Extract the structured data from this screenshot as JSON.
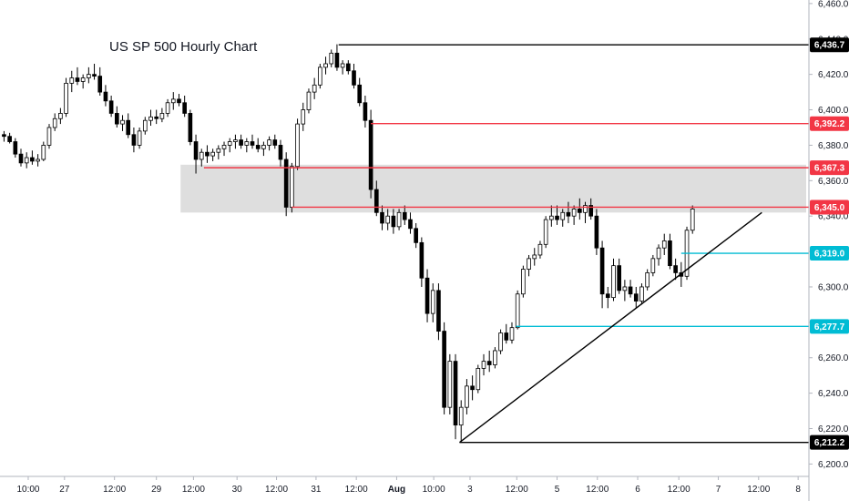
{
  "chart_data": {
    "type": "candlestick",
    "title": "US SP 500 Hourly Chart",
    "y_range": [
      6193,
      6462
    ],
    "y_ticks": [
      6200,
      6220,
      6240,
      6260,
      6280,
      6300,
      6320,
      6340,
      6360,
      6380,
      6400,
      6420,
      6440,
      6460
    ],
    "y_tick_labels": [
      "6,200.0",
      "6,220.0",
      "6,240.0",
      "6,260.0",
      "6,280.0",
      "6,300.0",
      "6,320.0",
      "6,340.0",
      "6,360.0",
      "6,380.0",
      "6,400.0",
      "6,420.0",
      "6,440.0",
      "6,460.0"
    ],
    "x_range": [
      0,
      100
    ],
    "x_ticks": [
      {
        "x": 3.5,
        "label": "10:00",
        "bold": false
      },
      {
        "x": 8.0,
        "label": "27",
        "bold": false
      },
      {
        "x": 14.2,
        "label": "12:00",
        "bold": false
      },
      {
        "x": 19.4,
        "label": "29",
        "bold": false
      },
      {
        "x": 24.0,
        "label": "12:00",
        "bold": false
      },
      {
        "x": 29.4,
        "label": "30",
        "bold": false
      },
      {
        "x": 34.3,
        "label": "12:00",
        "bold": false
      },
      {
        "x": 39.2,
        "label": "31",
        "bold": false
      },
      {
        "x": 44.2,
        "label": "12:00",
        "bold": false
      },
      {
        "x": 49.2,
        "label": "Aug",
        "bold": true
      },
      {
        "x": 53.8,
        "label": "10:00",
        "bold": false
      },
      {
        "x": 58.3,
        "label": "3",
        "bold": false
      },
      {
        "x": 64.1,
        "label": "12:00",
        "bold": false
      },
      {
        "x": 69.1,
        "label": "5",
        "bold": false
      },
      {
        "x": 74.1,
        "label": "12:00",
        "bold": false
      },
      {
        "x": 79.1,
        "label": "6",
        "bold": false
      },
      {
        "x": 84.2,
        "label": "12:00",
        "bold": false
      },
      {
        "x": 89.1,
        "label": "7",
        "bold": false
      },
      {
        "x": 94.1,
        "label": "12:00",
        "bold": false
      },
      {
        "x": 99.0,
        "label": "8",
        "bold": false
      }
    ],
    "zone": {
      "y_low": 6342,
      "y_high": 6369,
      "x_start": 22.4,
      "color": "#dedede"
    },
    "price_labels": [
      {
        "value": "6,436.7",
        "y": 6436.7,
        "bg": "#000000"
      },
      {
        "value": "6,392.2",
        "y": 6392.2,
        "bg": "#f23645"
      },
      {
        "value": "6,367.3",
        "y": 6367.3,
        "bg": "#f23645"
      },
      {
        "value": "6,345.0",
        "y": 6345.0,
        "bg": "#f23645"
      },
      {
        "value": "6,319.0",
        "y": 6319.0,
        "bg": "#00bcd4"
      },
      {
        "value": "6,277.7",
        "y": 6277.7,
        "bg": "#00bcd4"
      },
      {
        "value": "6,212.2",
        "y": 6212.2,
        "bg": "#000000"
      }
    ],
    "level_lines": [
      {
        "y": 6436.7,
        "x_start": 42.0,
        "color": "#000000"
      },
      {
        "y": 6392.2,
        "x_start": 46.0,
        "color": "#f23645"
      },
      {
        "y": 6367.3,
        "x_start": 25.3,
        "color": "#f23645"
      },
      {
        "y": 6345.0,
        "x_start": 36.2,
        "color": "#f23645"
      },
      {
        "y": 6319.0,
        "x_start": 84.5,
        "color": "#00bcd4"
      },
      {
        "y": 6277.7,
        "x_start": 64.0,
        "color": "#00bcd4"
      },
      {
        "y": 6212.2,
        "x_start": 57.0,
        "color": "#000000"
      }
    ],
    "trendline": {
      "x1": 57.0,
      "y1": 6212.2,
      "x2": 94.5,
      "y2": 6342,
      "color": "#000000"
    },
    "candles": [
      [
        0.5,
        6386,
        6388,
        6382,
        6385
      ],
      [
        1.2,
        6385,
        6387,
        6381,
        6382
      ],
      [
        1.9,
        6382,
        6384,
        6373,
        6375
      ],
      [
        2.6,
        6375,
        6378,
        6368,
        6370
      ],
      [
        3.3,
        6370,
        6376,
        6367,
        6373
      ],
      [
        4.0,
        6373,
        6377,
        6369,
        6371
      ],
      [
        4.7,
        6371,
        6375,
        6368,
        6372
      ],
      [
        5.4,
        6372,
        6382,
        6371,
        6380
      ],
      [
        6.1,
        6380,
        6392,
        6378,
        6390
      ],
      [
        6.8,
        6390,
        6398,
        6388,
        6395
      ],
      [
        7.5,
        6395,
        6401,
        6392,
        6398
      ],
      [
        8.2,
        6398,
        6418,
        6396,
        6415
      ],
      [
        8.9,
        6415,
        6422,
        6410,
        6418
      ],
      [
        9.6,
        6418,
        6424,
        6414,
        6416
      ],
      [
        10.3,
        6416,
        6420,
        6412,
        6418
      ],
      [
        11.0,
        6418,
        6424,
        6415,
        6420
      ],
      [
        11.7,
        6420,
        6426,
        6417,
        6419
      ],
      [
        12.4,
        6419,
        6424,
        6408,
        6410
      ],
      [
        13.1,
        6410,
        6414,
        6402,
        6405
      ],
      [
        13.8,
        6405,
        6408,
        6396,
        6398
      ],
      [
        14.5,
        6398,
        6402,
        6390,
        6392
      ],
      [
        15.2,
        6392,
        6397,
        6388,
        6394
      ],
      [
        15.9,
        6394,
        6398,
        6384,
        6386
      ],
      [
        16.6,
        6386,
        6390,
        6376,
        6380
      ],
      [
        17.3,
        6380,
        6390,
        6378,
        6388
      ],
      [
        18.0,
        6388,
        6396,
        6386,
        6394
      ],
      [
        18.7,
        6394,
        6400,
        6391,
        6396
      ],
      [
        19.4,
        6396,
        6400,
        6392,
        6395
      ],
      [
        20.1,
        6395,
        6401,
        6393,
        6398
      ],
      [
        20.8,
        6398,
        6406,
        6396,
        6404
      ],
      [
        21.5,
        6404,
        6410,
        6400,
        6406
      ],
      [
        22.2,
        6406,
        6409,
        6402,
        6404
      ],
      [
        22.9,
        6404,
        6408,
        6396,
        6398
      ],
      [
        23.6,
        6398,
        6400,
        6380,
        6382
      ],
      [
        24.3,
        6382,
        6386,
        6364,
        6372
      ],
      [
        25.0,
        6372,
        6378,
        6368,
        6376
      ],
      [
        25.7,
        6376,
        6380,
        6370,
        6374
      ],
      [
        26.4,
        6374,
        6378,
        6371,
        6376
      ],
      [
        27.1,
        6376,
        6380,
        6372,
        6378
      ],
      [
        27.8,
        6378,
        6382,
        6374,
        6380
      ],
      [
        28.5,
        6380,
        6384,
        6376,
        6382
      ],
      [
        29.2,
        6382,
        6386,
        6378,
        6383
      ],
      [
        29.9,
        6383,
        6386,
        6378,
        6380
      ],
      [
        30.6,
        6380,
        6384,
        6376,
        6382
      ],
      [
        31.3,
        6382,
        6386,
        6378,
        6380
      ],
      [
        32.0,
        6380,
        6384,
        6376,
        6378
      ],
      [
        32.7,
        6378,
        6382,
        6374,
        6380
      ],
      [
        33.4,
        6380,
        6385,
        6377,
        6383
      ],
      [
        34.1,
        6383,
        6386,
        6378,
        6380
      ],
      [
        34.8,
        6380,
        6383,
        6368,
        6372
      ],
      [
        35.5,
        6372,
        6376,
        6340,
        6345
      ],
      [
        36.2,
        6345,
        6370,
        6342,
        6368
      ],
      [
        36.9,
        6368,
        6395,
        6366,
        6392
      ],
      [
        37.6,
        6392,
        6404,
        6388,
        6400
      ],
      [
        38.3,
        6400,
        6412,
        6398,
        6410
      ],
      [
        39.0,
        6410,
        6418,
        6406,
        6414
      ],
      [
        39.7,
        6414,
        6426,
        6412,
        6424
      ],
      [
        40.4,
        6424,
        6430,
        6420,
        6426
      ],
      [
        41.1,
        6426,
        6434,
        6424,
        6432
      ],
      [
        41.8,
        6432,
        6437,
        6422,
        6424
      ],
      [
        42.5,
        6424,
        6428,
        6420,
        6426
      ],
      [
        43.2,
        6426,
        6428,
        6420,
        6422
      ],
      [
        43.9,
        6422,
        6426,
        6412,
        6414
      ],
      [
        44.6,
        6414,
        6418,
        6402,
        6404
      ],
      [
        45.3,
        6404,
        6408,
        6390,
        6394
      ],
      [
        46.0,
        6394,
        6400,
        6350,
        6355
      ],
      [
        46.7,
        6355,
        6360,
        6340,
        6342
      ],
      [
        47.4,
        6342,
        6346,
        6332,
        6336
      ],
      [
        48.1,
        6336,
        6344,
        6332,
        6340
      ],
      [
        48.8,
        6340,
        6344,
        6330,
        6334
      ],
      [
        49.5,
        6334,
        6344,
        6332,
        6342
      ],
      [
        50.2,
        6342,
        6346,
        6335,
        6338
      ],
      [
        50.9,
        6338,
        6342,
        6330,
        6333
      ],
      [
        51.6,
        6333,
        6336,
        6322,
        6325
      ],
      [
        52.3,
        6325,
        6328,
        6300,
        6305
      ],
      [
        53.0,
        6305,
        6310,
        6280,
        6285
      ],
      [
        53.7,
        6285,
        6302,
        6280,
        6298
      ],
      [
        54.4,
        6298,
        6302,
        6270,
        6275
      ],
      [
        55.1,
        6275,
        6280,
        6228,
        6232
      ],
      [
        55.8,
        6232,
        6262,
        6228,
        6258
      ],
      [
        56.5,
        6258,
        6262,
        6214,
        6222
      ],
      [
        57.2,
        6222,
        6236,
        6212,
        6232
      ],
      [
        57.9,
        6232,
        6248,
        6228,
        6244
      ],
      [
        58.6,
        6244,
        6250,
        6236,
        6242
      ],
      [
        59.3,
        6242,
        6256,
        6240,
        6254
      ],
      [
        60.0,
        6254,
        6262,
        6250,
        6258
      ],
      [
        60.7,
        6258,
        6264,
        6252,
        6256
      ],
      [
        61.4,
        6256,
        6266,
        6254,
        6264
      ],
      [
        62.1,
        6264,
        6276,
        6262,
        6274
      ],
      [
        62.8,
        6274,
        6279,
        6268,
        6270
      ],
      [
        63.5,
        6270,
        6280,
        6268,
        6277
      ],
      [
        64.2,
        6277,
        6298,
        6276,
        6296
      ],
      [
        64.9,
        6296,
        6312,
        6294,
        6310
      ],
      [
        65.6,
        6310,
        6318,
        6306,
        6316
      ],
      [
        66.3,
        6316,
        6322,
        6312,
        6318
      ],
      [
        67.0,
        6318,
        6326,
        6316,
        6324
      ],
      [
        67.7,
        6324,
        6340,
        6322,
        6338
      ],
      [
        68.4,
        6338,
        6346,
        6334,
        6340
      ],
      [
        69.1,
        6340,
        6346,
        6335,
        6338
      ],
      [
        69.8,
        6338,
        6344,
        6334,
        6342
      ],
      [
        70.5,
        6342,
        6348,
        6336,
        6340
      ],
      [
        71.2,
        6340,
        6346,
        6335,
        6344
      ],
      [
        71.9,
        6344,
        6350,
        6338,
        6342
      ],
      [
        72.6,
        6342,
        6348,
        6336,
        6346
      ],
      [
        73.3,
        6346,
        6350,
        6338,
        6340
      ],
      [
        74.0,
        6340,
        6344,
        6318,
        6322
      ],
      [
        74.7,
        6322,
        6326,
        6288,
        6296
      ],
      [
        75.4,
        6296,
        6300,
        6288,
        6294
      ],
      [
        76.1,
        6294,
        6316,
        6292,
        6312
      ],
      [
        76.8,
        6312,
        6316,
        6296,
        6298
      ],
      [
        77.5,
        6298,
        6304,
        6292,
        6300
      ],
      [
        78.2,
        6300,
        6304,
        6294,
        6296
      ],
      [
        78.9,
        6296,
        6300,
        6288,
        6292
      ],
      [
        79.6,
        6292,
        6302,
        6290,
        6300
      ],
      [
        80.3,
        6300,
        6310,
        6298,
        6308
      ],
      [
        81.0,
        6308,
        6318,
        6306,
        6316
      ],
      [
        81.7,
        6316,
        6324,
        6312,
        6322
      ],
      [
        82.4,
        6322,
        6330,
        6318,
        6326
      ],
      [
        83.1,
        6326,
        6330,
        6310,
        6312
      ],
      [
        83.8,
        6312,
        6316,
        6304,
        6308
      ],
      [
        84.5,
        6308,
        6314,
        6300,
        6306
      ],
      [
        85.2,
        6306,
        6334,
        6304,
        6332
      ],
      [
        85.9,
        6332,
        6346,
        6330,
        6344
      ]
    ]
  }
}
